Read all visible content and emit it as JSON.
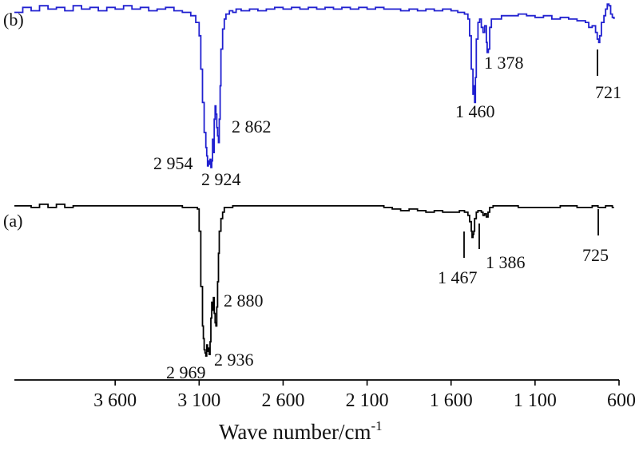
{
  "chart_data": {
    "type": "line",
    "xlabel": "Wave number/cm",
    "xlabel_superscript": "-1",
    "xlim": [
      4200,
      600
    ],
    "x_ticks": [
      3600,
      3100,
      2600,
      2100,
      1600,
      1100,
      600
    ],
    "x_tick_labels": [
      "3 600",
      "3 100",
      "2 600",
      "2 100",
      "1 600",
      "1 100",
      "600"
    ],
    "y_axis_visible": false,
    "grid": false,
    "series": [
      {
        "panel": "(b)",
        "color": "#2020d0",
        "baseline": 0.96,
        "points": [
          [
            4200,
            0.94
          ],
          [
            4150,
            0.97
          ],
          [
            4100,
            0.95
          ],
          [
            4050,
            0.98
          ],
          [
            4000,
            0.96
          ],
          [
            3950,
            0.97
          ],
          [
            3900,
            0.95
          ],
          [
            3850,
            0.98
          ],
          [
            3800,
            0.96
          ],
          [
            3750,
            0.97
          ],
          [
            3700,
            0.95
          ],
          [
            3650,
            0.97
          ],
          [
            3600,
            0.96
          ],
          [
            3550,
            0.98
          ],
          [
            3500,
            0.96
          ],
          [
            3450,
            0.97
          ],
          [
            3400,
            0.95
          ],
          [
            3350,
            0.96
          ],
          [
            3300,
            0.97
          ],
          [
            3250,
            0.95
          ],
          [
            3200,
            0.94
          ],
          [
            3150,
            0.92
          ],
          [
            3120,
            0.88
          ],
          [
            3100,
            0.8
          ],
          [
            3090,
            0.6
          ],
          [
            3080,
            0.4
          ],
          [
            3070,
            0.22
          ],
          [
            3060,
            0.13
          ],
          [
            3055,
            0.08
          ],
          [
            3050,
            0.02
          ],
          [
            3045,
            0.05
          ],
          [
            3040,
            0.03
          ],
          [
            3035,
            0.06
          ],
          [
            3030,
            0.01
          ],
          [
            3025,
            0.05
          ],
          [
            3020,
            0.18
          ],
          [
            3015,
            0.1
          ],
          [
            3010,
            0.3
          ],
          [
            3005,
            0.38
          ],
          [
            3000,
            0.33
          ],
          [
            2995,
            0.25
          ],
          [
            2990,
            0.2
          ],
          [
            2985,
            0.16
          ],
          [
            2980,
            0.3
          ],
          [
            2975,
            0.5
          ],
          [
            2970,
            0.72
          ],
          [
            2960,
            0.84
          ],
          [
            2950,
            0.9
          ],
          [
            2940,
            0.93
          ],
          [
            2920,
            0.95
          ],
          [
            2900,
            0.94
          ],
          [
            2880,
            0.96
          ],
          [
            2850,
            0.95
          ],
          [
            2800,
            0.96
          ],
          [
            2750,
            0.95
          ],
          [
            2700,
            0.96
          ],
          [
            2650,
            0.97
          ],
          [
            2600,
            0.96
          ],
          [
            2550,
            0.97
          ],
          [
            2500,
            0.96
          ],
          [
            2450,
            0.97
          ],
          [
            2400,
            0.96
          ],
          [
            2350,
            0.97
          ],
          [
            2300,
            0.96
          ],
          [
            2250,
            0.97
          ],
          [
            2200,
            0.96
          ],
          [
            2150,
            0.97
          ],
          [
            2100,
            0.96
          ],
          [
            2050,
            0.97
          ],
          [
            2000,
            0.96
          ],
          [
            1950,
            0.96
          ],
          [
            1900,
            0.95
          ],
          [
            1850,
            0.96
          ],
          [
            1800,
            0.95
          ],
          [
            1750,
            0.96
          ],
          [
            1700,
            0.95
          ],
          [
            1650,
            0.96
          ],
          [
            1600,
            0.95
          ],
          [
            1560,
            0.94
          ],
          [
            1520,
            0.93
          ],
          [
            1500,
            0.9
          ],
          [
            1490,
            0.8
          ],
          [
            1480,
            0.6
          ],
          [
            1470,
            0.45
          ],
          [
            1465,
            0.5
          ],
          [
            1460,
            0.4
          ],
          [
            1455,
            0.55
          ],
          [
            1450,
            0.78
          ],
          [
            1440,
            0.88
          ],
          [
            1430,
            0.9
          ],
          [
            1420,
            0.85
          ],
          [
            1410,
            0.82
          ],
          [
            1400,
            0.86
          ],
          [
            1390,
            0.76
          ],
          [
            1385,
            0.7
          ],
          [
            1378,
            0.72
          ],
          [
            1370,
            0.85
          ],
          [
            1360,
            0.9
          ],
          [
            1300,
            0.92
          ],
          [
            1250,
            0.92
          ],
          [
            1200,
            0.93
          ],
          [
            1150,
            0.92
          ],
          [
            1100,
            0.91
          ],
          [
            1050,
            0.92
          ],
          [
            1000,
            0.9
          ],
          [
            950,
            0.91
          ],
          [
            900,
            0.9
          ],
          [
            850,
            0.89
          ],
          [
            800,
            0.88
          ],
          [
            780,
            0.85
          ],
          [
            760,
            0.86
          ],
          [
            740,
            0.82
          ],
          [
            730,
            0.78
          ],
          [
            721,
            0.76
          ],
          [
            715,
            0.8
          ],
          [
            705,
            0.88
          ],
          [
            690,
            0.92
          ],
          [
            680,
            0.96
          ],
          [
            670,
            0.99
          ],
          [
            660,
            0.98
          ],
          [
            650,
            0.93
          ],
          [
            640,
            0.91
          ],
          [
            630,
            0.9
          ]
        ]
      },
      {
        "panel": "(a)",
        "color": "#000000",
        "baseline": 0.96,
        "points": [
          [
            4200,
            0.96
          ],
          [
            4150,
            0.96
          ],
          [
            4100,
            0.95
          ],
          [
            4050,
            0.97
          ],
          [
            4000,
            0.95
          ],
          [
            3950,
            0.97
          ],
          [
            3900,
            0.95
          ],
          [
            3850,
            0.96
          ],
          [
            3800,
            0.96
          ],
          [
            3750,
            0.96
          ],
          [
            3700,
            0.96
          ],
          [
            3650,
            0.96
          ],
          [
            3600,
            0.96
          ],
          [
            3550,
            0.96
          ],
          [
            3500,
            0.96
          ],
          [
            3450,
            0.96
          ],
          [
            3400,
            0.96
          ],
          [
            3350,
            0.96
          ],
          [
            3300,
            0.96
          ],
          [
            3250,
            0.96
          ],
          [
            3200,
            0.95
          ],
          [
            3150,
            0.95
          ],
          [
            3110,
            0.94
          ],
          [
            3100,
            0.8
          ],
          [
            3090,
            0.45
          ],
          [
            3080,
            0.2
          ],
          [
            3075,
            0.12
          ],
          [
            3070,
            0.05
          ],
          [
            3065,
            0.03
          ],
          [
            3060,
            0.01
          ],
          [
            3055,
            0.08
          ],
          [
            3050,
            0.04
          ],
          [
            3045,
            0.06
          ],
          [
            3040,
            0.02
          ],
          [
            3035,
            0.1
          ],
          [
            3030,
            0.25
          ],
          [
            3025,
            0.35
          ],
          [
            3020,
            0.3
          ],
          [
            3015,
            0.38
          ],
          [
            3010,
            0.28
          ],
          [
            3005,
            0.22
          ],
          [
            3000,
            0.2
          ],
          [
            2995,
            0.32
          ],
          [
            2990,
            0.48
          ],
          [
            2985,
            0.66
          ],
          [
            2980,
            0.8
          ],
          [
            2970,
            0.88
          ],
          [
            2960,
            0.92
          ],
          [
            2950,
            0.95
          ],
          [
            2900,
            0.96
          ],
          [
            2850,
            0.96
          ],
          [
            2800,
            0.96
          ],
          [
            2750,
            0.96
          ],
          [
            2700,
            0.96
          ],
          [
            2650,
            0.96
          ],
          [
            2600,
            0.96
          ],
          [
            2550,
            0.96
          ],
          [
            2500,
            0.96
          ],
          [
            2450,
            0.96
          ],
          [
            2400,
            0.96
          ],
          [
            2350,
            0.96
          ],
          [
            2300,
            0.96
          ],
          [
            2250,
            0.96
          ],
          [
            2200,
            0.96
          ],
          [
            2150,
            0.96
          ],
          [
            2100,
            0.96
          ],
          [
            2050,
            0.96
          ],
          [
            2000,
            0.95
          ],
          [
            1950,
            0.94
          ],
          [
            1900,
            0.93
          ],
          [
            1850,
            0.94
          ],
          [
            1800,
            0.93
          ],
          [
            1750,
            0.92
          ],
          [
            1700,
            0.93
          ],
          [
            1650,
            0.92
          ],
          [
            1600,
            0.92
          ],
          [
            1550,
            0.93
          ],
          [
            1520,
            0.92
          ],
          [
            1500,
            0.9
          ],
          [
            1490,
            0.86
          ],
          [
            1480,
            0.8
          ],
          [
            1475,
            0.76
          ],
          [
            1470,
            0.78
          ],
          [
            1465,
            0.8
          ],
          [
            1460,
            0.88
          ],
          [
            1450,
            0.92
          ],
          [
            1440,
            0.93
          ],
          [
            1420,
            0.92
          ],
          [
            1410,
            0.9
          ],
          [
            1400,
            0.91
          ],
          [
            1390,
            0.89
          ],
          [
            1386,
            0.89
          ],
          [
            1380,
            0.92
          ],
          [
            1370,
            0.95
          ],
          [
            1350,
            0.96
          ],
          [
            1300,
            0.96
          ],
          [
            1250,
            0.96
          ],
          [
            1200,
            0.95
          ],
          [
            1150,
            0.95
          ],
          [
            1100,
            0.95
          ],
          [
            1050,
            0.95
          ],
          [
            1000,
            0.95
          ],
          [
            950,
            0.96
          ],
          [
            900,
            0.96
          ],
          [
            850,
            0.95
          ],
          [
            800,
            0.95
          ],
          [
            760,
            0.96
          ],
          [
            725,
            0.95
          ],
          [
            700,
            0.95
          ],
          [
            680,
            0.96
          ],
          [
            660,
            0.96
          ],
          [
            640,
            0.95
          ],
          [
            630,
            0.95
          ]
        ]
      }
    ],
    "annotations": [
      {
        "panel": "(b)",
        "text": "2 954",
        "x": 3060,
        "tick": false
      },
      {
        "panel": "(b)",
        "text": "2 924",
        "x": 3030,
        "tick": false
      },
      {
        "panel": "(b)",
        "text": "2 862",
        "x": 2990,
        "tick": false
      },
      {
        "panel": "(b)",
        "text": "1 460",
        "x": 1460,
        "tick": false
      },
      {
        "panel": "(b)",
        "text": "1 378",
        "x": 1378,
        "tick": false
      },
      {
        "panel": "(b)",
        "text": "721",
        "x": 721,
        "tick": true
      },
      {
        "panel": "(a)",
        "text": "2 969",
        "x": 3065,
        "tick": false
      },
      {
        "panel": "(a)",
        "text": "2 936",
        "x": 3040,
        "tick": false
      },
      {
        "panel": "(a)",
        "text": "2 880",
        "x": 2990,
        "tick": false
      },
      {
        "panel": "(a)",
        "text": "1 467",
        "x": 1467,
        "tick": true
      },
      {
        "panel": "(a)",
        "text": "1 386",
        "x": 1386,
        "tick": true
      },
      {
        "panel": "(a)",
        "text": "725",
        "x": 725,
        "tick": true
      }
    ]
  }
}
